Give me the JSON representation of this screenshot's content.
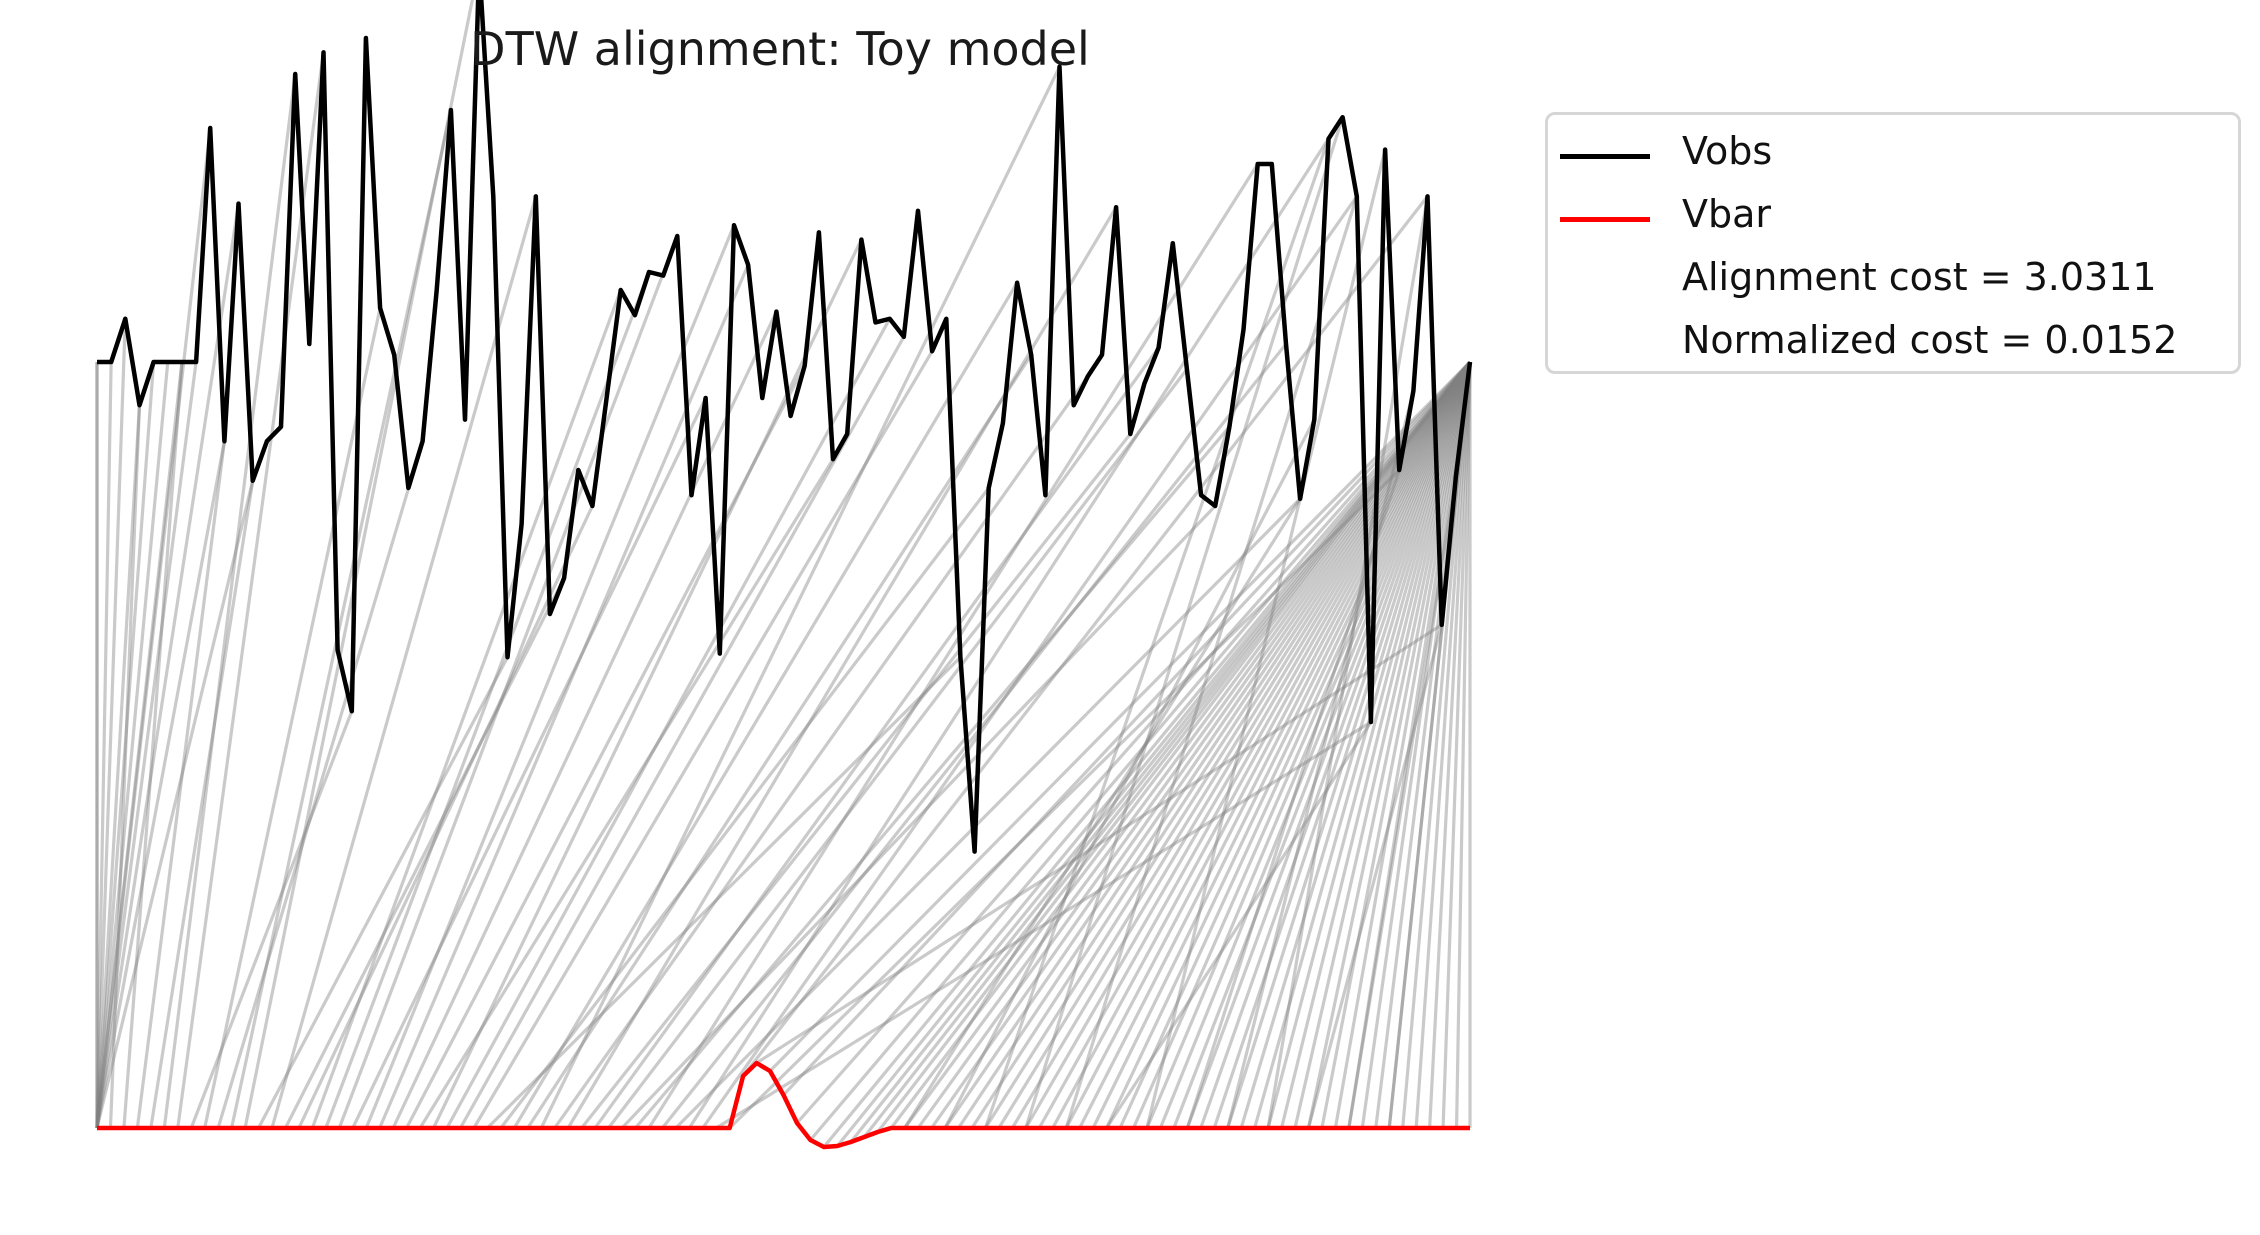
{
  "chart_data": {
    "type": "line",
    "title": "DTW alignment: Toy model",
    "series": [
      {
        "name": "Vobs",
        "color": "#000000",
        "values": [
          0.0,
          0.0,
          0.12,
          -0.12,
          0.0,
          0.0,
          0.0,
          0.0,
          0.65,
          -0.22,
          0.44,
          -0.33,
          -0.22,
          -0.18,
          0.8,
          0.05,
          0.86,
          -0.8,
          -0.97,
          0.9,
          0.15,
          0.02,
          -0.35,
          -0.22,
          0.2,
          0.7,
          -0.16,
          1.1,
          0.46,
          -0.82,
          -0.45,
          0.46,
          -0.7,
          -0.6,
          -0.3,
          -0.4,
          -0.1,
          0.2,
          0.13,
          0.25,
          0.24,
          0.35,
          -0.37,
          -0.1,
          -0.81,
          0.38,
          0.27,
          -0.1,
          0.14,
          -0.15,
          -0.01,
          0.36,
          -0.27,
          -0.2,
          0.34,
          0.11,
          0.12,
          0.07,
          0.42,
          0.03,
          0.12,
          -0.82,
          -1.36,
          -0.35,
          -0.17,
          0.22,
          0.02,
          -0.37,
          0.82,
          -0.12,
          -0.04,
          0.02,
          0.43,
          -0.2,
          -0.06,
          0.04,
          0.33,
          -0.02,
          -0.37,
          -0.4,
          -0.18,
          0.09,
          0.55,
          0.55,
          0.05,
          -0.38,
          -0.16,
          0.62,
          0.68,
          0.46,
          -1.0,
          0.59,
          -0.3,
          -0.08,
          0.46,
          -0.73,
          -0.32,
          0.0
        ]
      },
      {
        "name": "Vbar",
        "color": "#ff0000",
        "values": [
          0.0,
          0.0,
          0.0,
          0.0,
          0.0,
          0.0,
          0.0,
          0.0,
          0.0,
          0.0,
          0.0,
          0.0,
          0.0,
          0.0,
          0.0,
          0.0,
          0.0,
          0.0,
          0.0,
          0.0,
          0.0,
          0.0,
          0.0,
          0.0,
          0.0,
          0.0,
          0.0,
          0.0,
          0.0,
          0.0,
          0.0,
          0.0,
          0.0,
          0.0,
          0.0,
          0.0,
          0.0,
          0.0,
          0.0,
          0.0,
          0.0,
          0.0,
          0.0,
          0.0,
          0.0,
          0.0,
          0.0,
          0.0,
          0.52,
          0.65,
          0.57,
          0.33,
          0.05,
          -0.12,
          -0.19,
          -0.18,
          -0.14,
          -0.09,
          -0.04,
          0.0,
          0.0,
          0.0,
          0.0,
          0.0,
          0.0,
          0.0,
          0.0,
          0.0,
          0.0,
          0.0,
          0.0,
          0.0,
          0.0,
          0.0,
          0.0,
          0.0,
          0.0,
          0.0,
          0.0,
          0.0,
          0.0,
          0.0,
          0.0,
          0.0,
          0.0,
          0.0,
          0.0,
          0.0,
          0.0,
          0.0,
          0.0,
          0.0,
          0.0,
          0.0,
          0.0,
          0.0,
          0.0,
          0.0,
          0.0,
          0.0,
          0.0,
          0.0,
          0.0
        ]
      }
    ],
    "alignment_color": "#808080",
    "grid": false,
    "axes_visible": false,
    "legend_position": "outside-top-right",
    "legend": {
      "entries": [
        "Vobs",
        "Vbar"
      ],
      "alignment_cost": "Alignment cost = 3.0311",
      "normalized_cost": "Normalized cost = 0.0152"
    }
  }
}
